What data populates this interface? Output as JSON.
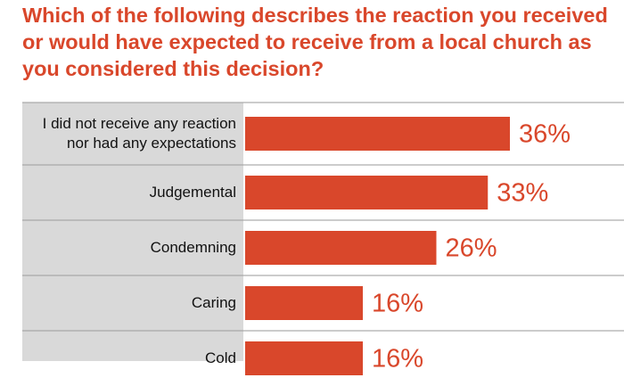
{
  "chart_data": {
    "type": "bar",
    "orientation": "horizontal",
    "title": "Which of the following describes the reaction you received or would have expected to receive from a local church as you considered this decision?",
    "categories": [
      "I did not receive any reaction nor had any expectations",
      "Judgemental",
      "Condemning",
      "Caring",
      "Cold"
    ],
    "values": [
      36,
      33,
      26,
      16,
      16
    ],
    "value_labels": [
      "36%",
      "33%",
      "26%",
      "16%",
      "16%"
    ],
    "color": "#d9472b"
  }
}
